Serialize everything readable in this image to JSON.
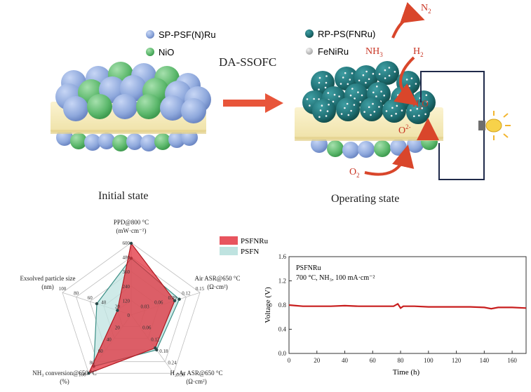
{
  "top": {
    "legend_left": [
      {
        "label": "SP-PSF(N)Ru",
        "color": "#8ea8dc"
      },
      {
        "label": "NiO",
        "color": "#5cb86c"
      }
    ],
    "legend_right": [
      {
        "label": "RP-PS(FNRu)",
        "color": "#1f6f73"
      },
      {
        "label": "FeNiRu",
        "color": "#b0b0b0"
      }
    ],
    "process_label": "DA-SSOFC",
    "initial_caption": "Initial state",
    "operating_caption": "Operating state",
    "species": {
      "n2_main": "N",
      "n2_sub": "2",
      "nh3_main": "NH",
      "nh3_sub": "3",
      "h2_main": "H",
      "h2_sub": "2",
      "h2o_main": "H",
      "h2o_sub": "2",
      "h2o_end": "O",
      "o2_main": "O",
      "o2_sub": "2",
      "oxide_main": "O",
      "oxide_sup": "2-"
    }
  },
  "chart_data": [
    {
      "type": "radar",
      "legend": [
        {
          "name": "PSFNRu",
          "color": "#e8545e"
        },
        {
          "name": "PSFN",
          "color": "#bfe3e0"
        }
      ],
      "axes": [
        {
          "line1": "PPD@800 °C",
          "line2": "(mW·cm⁻²)",
          "ticks": [
            "0",
            "120",
            "240",
            "360",
            "480",
            "600"
          ]
        },
        {
          "line1": "Air ASR@650 °C",
          "line2": "(Ω·cm²)",
          "ticks": [
            "0.03",
            "0.06",
            "0.09",
            "0.12",
            "0.15"
          ]
        },
        {
          "line1": "H₂-Ar ASR@650 °C",
          "line2": "(Ω·cm²)",
          "ticks": [
            "0.06",
            "0.12",
            "0.18",
            "0.24",
            "0.30"
          ]
        },
        {
          "line1": "NH₃ conversion@650 °C",
          "line2": "(%)",
          "ticks": [
            "20",
            "40",
            "60",
            "80",
            "100"
          ]
        },
        {
          "line1": "Exsolved particle size",
          "line2": "(nm)",
          "ticks": [
            "20",
            "40",
            "60",
            "80",
            "100"
          ]
        }
      ],
      "series": [
        {
          "name": "PSFNRu",
          "values": [
            594,
            0.095,
            0.17,
            100,
            20
          ]
        },
        {
          "name": "PSFN",
          "values": [
            470,
            0.105,
            0.18,
            88,
            50
          ]
        }
      ]
    },
    {
      "type": "line",
      "annotation_line1": "PSFNRu",
      "annotation_line2": "700 °C, NH₃, 100 mA·cm⁻²",
      "xlabel": "Time (h)",
      "ylabel": "Voltage (V)",
      "xlim": [
        0,
        170
      ],
      "ylim": [
        0,
        1.6
      ],
      "xticks": [
        "0",
        "20",
        "40",
        "60",
        "80",
        "100",
        "120",
        "140",
        "160"
      ],
      "yticks": [
        "0.0",
        "0.4",
        "0.8",
        "1.2",
        "1.6"
      ],
      "series": [
        {
          "color": "#c81e1e",
          "x": [
            0,
            5,
            10,
            20,
            30,
            40,
            50,
            60,
            70,
            75,
            78,
            80,
            82,
            90,
            100,
            110,
            120,
            130,
            140,
            145,
            150,
            160,
            170
          ],
          "y": [
            0.8,
            0.79,
            0.78,
            0.78,
            0.78,
            0.79,
            0.78,
            0.78,
            0.78,
            0.78,
            0.82,
            0.75,
            0.78,
            0.78,
            0.77,
            0.77,
            0.77,
            0.77,
            0.76,
            0.74,
            0.76,
            0.76,
            0.75
          ]
        }
      ]
    }
  ]
}
